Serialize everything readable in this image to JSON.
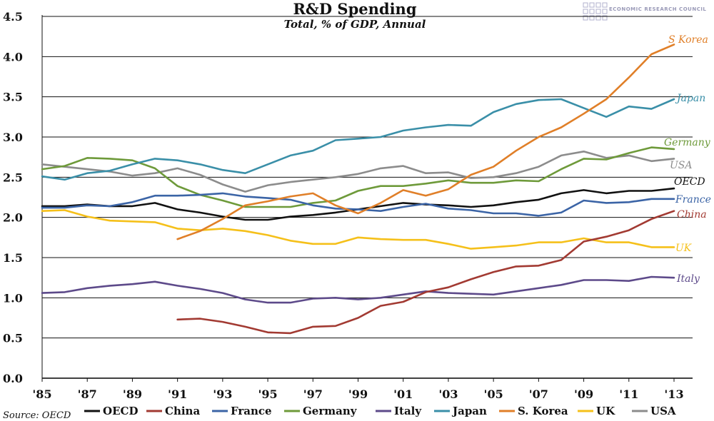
{
  "brand": {
    "text": "ECONOMIC RESEARCH COUNCIL",
    "color": "#9a9ab8"
  },
  "source": "Source: OECD",
  "chart_data": {
    "type": "line",
    "title": "R&D Spending",
    "subtitle": "Total, % of GDP, Annual",
    "xlabel": "",
    "ylabel": "",
    "xlim": [
      1985,
      2013
    ],
    "ylim": [
      0,
      4.5
    ],
    "yticks": [
      "0.0",
      "0.5",
      "1.0",
      "1.5",
      "2.0",
      "2.5",
      "3.0",
      "3.5",
      "4.0",
      "4.5"
    ],
    "xticks": [
      {
        "year": 1985,
        "label": "'85"
      },
      {
        "year": 1987,
        "label": "'87"
      },
      {
        "year": 1989,
        "label": "'89"
      },
      {
        "year": 1991,
        "label": "'91"
      },
      {
        "year": 1993,
        "label": "'93"
      },
      {
        "year": 1995,
        "label": "'95"
      },
      {
        "year": 1997,
        "label": "'97"
      },
      {
        "year": 1999,
        "label": "'99"
      },
      {
        "year": 2001,
        "label": "'01"
      },
      {
        "year": 2003,
        "label": "'03"
      },
      {
        "year": 2005,
        "label": "'05"
      },
      {
        "year": 2007,
        "label": "'07"
      },
      {
        "year": 2009,
        "label": "'09"
      },
      {
        "year": 2011,
        "label": "'11"
      },
      {
        "year": 2013,
        "label": "'13"
      }
    ],
    "grid": true,
    "legend_position": "bottom",
    "series": [
      {
        "name": "OECD",
        "end_label": "OECD",
        "color": "#111111",
        "start": 1985,
        "values": [
          2.14,
          2.14,
          2.16,
          2.14,
          2.14,
          2.18,
          2.1,
          2.06,
          2.01,
          1.97,
          1.97,
          2.01,
          2.03,
          2.06,
          2.1,
          2.14,
          2.18,
          2.16,
          2.15,
          2.13,
          2.15,
          2.19,
          2.22,
          2.3,
          2.34,
          2.3,
          2.33,
          2.33,
          2.36
        ]
      },
      {
        "name": "China",
        "end_label": "China",
        "color": "#a23a32",
        "start": 1991,
        "values": [
          0.73,
          0.74,
          0.7,
          0.64,
          0.57,
          0.56,
          0.64,
          0.65,
          0.75,
          0.9,
          0.95,
          1.07,
          1.13,
          1.23,
          1.32,
          1.39,
          1.4,
          1.47,
          1.7,
          1.76,
          1.84,
          1.98,
          2.08
        ]
      },
      {
        "name": "France",
        "end_label": "France",
        "color": "#3b64a6",
        "start": 1985,
        "values": [
          2.12,
          2.12,
          2.15,
          2.14,
          2.19,
          2.27,
          2.27,
          2.28,
          2.3,
          2.26,
          2.24,
          2.22,
          2.15,
          2.11,
          2.1,
          2.08,
          2.13,
          2.17,
          2.11,
          2.09,
          2.05,
          2.05,
          2.02,
          2.06,
          2.21,
          2.18,
          2.19,
          2.23,
          2.23
        ]
      },
      {
        "name": "Germany",
        "end_label": "Germany",
        "color": "#6e9a3a",
        "start": 1985,
        "values": [
          2.6,
          2.64,
          2.74,
          2.73,
          2.71,
          2.61,
          2.39,
          2.28,
          2.21,
          2.13,
          2.13,
          2.13,
          2.18,
          2.21,
          2.33,
          2.39,
          2.39,
          2.42,
          2.46,
          2.43,
          2.43,
          2.46,
          2.45,
          2.6,
          2.73,
          2.72,
          2.8,
          2.87,
          2.85
        ]
      },
      {
        "name": "Italy",
        "end_label": "Italy",
        "color": "#5d4a8a",
        "start": 1985,
        "values": [
          1.06,
          1.07,
          1.12,
          1.15,
          1.17,
          1.2,
          1.15,
          1.11,
          1.06,
          0.98,
          0.94,
          0.94,
          0.99,
          1.0,
          0.98,
          1.0,
          1.04,
          1.08,
          1.06,
          1.05,
          1.04,
          1.08,
          1.12,
          1.16,
          1.22,
          1.22,
          1.21,
          1.26,
          1.25
        ]
      },
      {
        "name": "Japan",
        "end_label": "Japan",
        "color": "#3a8fa8",
        "start": 1985,
        "values": [
          2.51,
          2.47,
          2.55,
          2.58,
          2.66,
          2.73,
          2.71,
          2.66,
          2.59,
          2.55,
          2.66,
          2.77,
          2.83,
          2.96,
          2.98,
          3.0,
          3.08,
          3.12,
          3.15,
          3.14,
          3.31,
          3.41,
          3.46,
          3.47,
          3.36,
          3.25,
          3.38,
          3.35,
          3.47
        ]
      },
      {
        "name": "S. Korea",
        "end_label": "S Korea",
        "color": "#e07f28",
        "start": 1991,
        "values": [
          1.73,
          1.83,
          1.98,
          2.15,
          2.2,
          2.26,
          2.3,
          2.15,
          2.05,
          2.18,
          2.34,
          2.27,
          2.35,
          2.53,
          2.63,
          2.83,
          3.0,
          3.12,
          3.29,
          3.47,
          3.74,
          4.03,
          4.15
        ]
      },
      {
        "name": "UK",
        "end_label": "UK",
        "color": "#f5c01a",
        "start": 1985,
        "values": [
          2.08,
          2.09,
          2.01,
          1.96,
          1.95,
          1.94,
          1.86,
          1.84,
          1.86,
          1.83,
          1.78,
          1.71,
          1.67,
          1.67,
          1.75,
          1.73,
          1.72,
          1.72,
          1.67,
          1.61,
          1.63,
          1.65,
          1.69,
          1.69,
          1.74,
          1.69,
          1.69,
          1.63,
          1.63
        ]
      },
      {
        "name": "USA",
        "end_label": "USA",
        "color": "#8c8c8c",
        "start": 1985,
        "values": [
          2.66,
          2.63,
          2.6,
          2.57,
          2.52,
          2.55,
          2.61,
          2.53,
          2.41,
          2.32,
          2.4,
          2.44,
          2.47,
          2.5,
          2.54,
          2.61,
          2.64,
          2.55,
          2.56,
          2.49,
          2.5,
          2.55,
          2.63,
          2.77,
          2.82,
          2.74,
          2.77,
          2.7,
          2.73
        ]
      }
    ]
  }
}
